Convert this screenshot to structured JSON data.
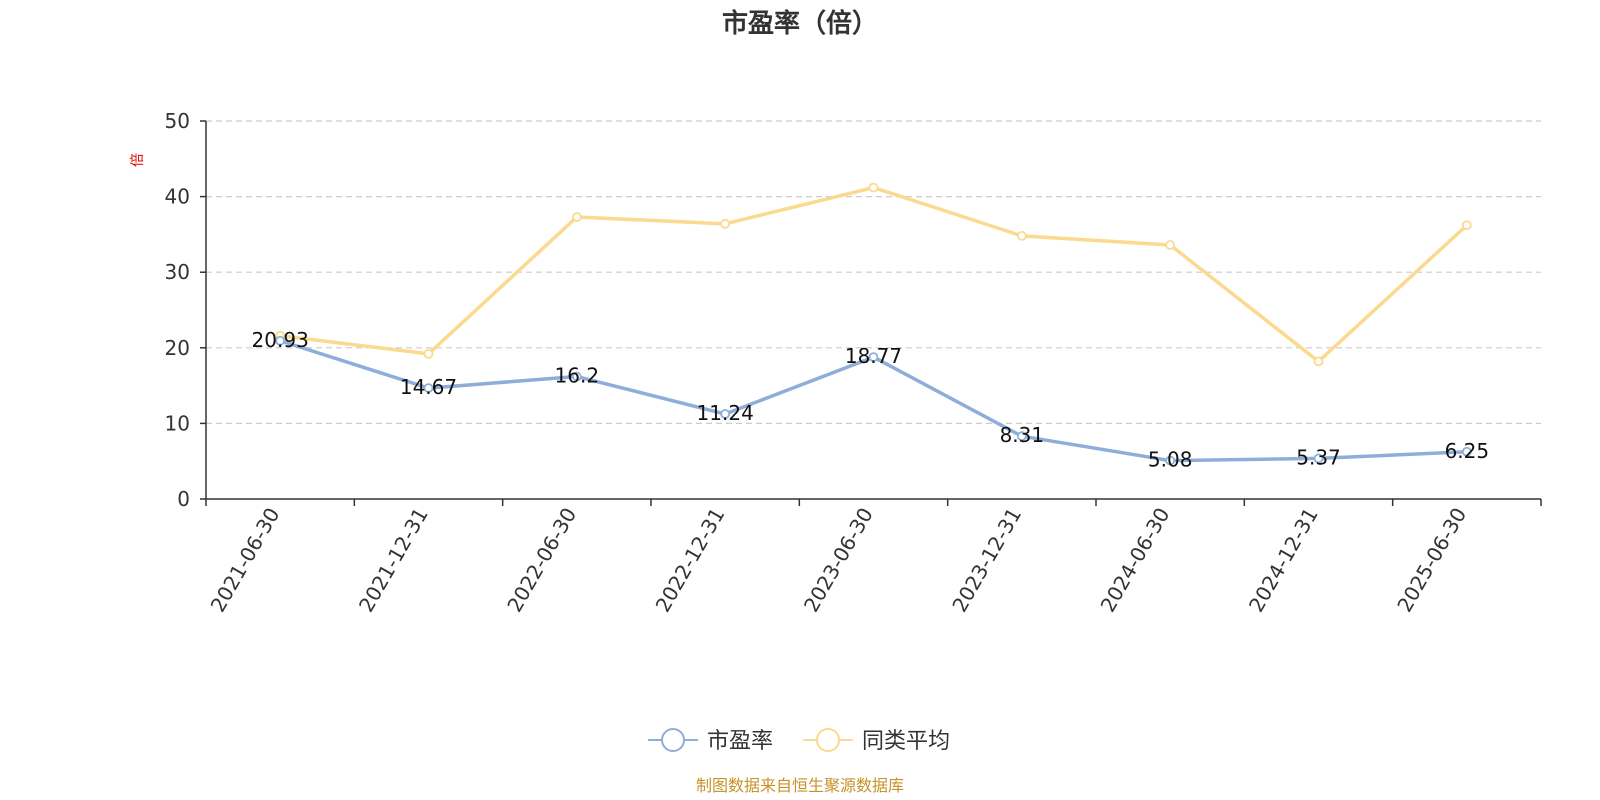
{
  "chart_data": {
    "type": "line",
    "title": "市盈率（倍）",
    "ylabel": "倍",
    "ylim": [
      0,
      50
    ],
    "yticks": [
      "0",
      "10",
      "20",
      "30",
      "40",
      "50"
    ],
    "grid": true,
    "categories": [
      "2021-06-30",
      "2021-12-31",
      "2022-06-30",
      "2022-12-31",
      "2023-06-30",
      "2023-12-31",
      "2024-06-30",
      "2024-12-31",
      "2025-06-30"
    ],
    "series": [
      {
        "name": "市盈率",
        "color": "#8eaed9",
        "values": [
          20.93,
          14.67,
          16.2,
          11.24,
          18.77,
          8.31,
          5.08,
          5.37,
          6.25
        ],
        "labels": [
          "20.93",
          "14.67",
          "16.2",
          "11.24",
          "18.77",
          "8.31",
          "5.08",
          "5.37",
          "6.25"
        ]
      },
      {
        "name": "同类平均",
        "color": "#fbd98f",
        "values": [
          21.6,
          19.2,
          37.3,
          36.4,
          41.2,
          34.8,
          33.6,
          18.2,
          36.2
        ]
      }
    ],
    "legend_position": "bottom",
    "source": "制图数据来自恒生聚源数据库"
  }
}
